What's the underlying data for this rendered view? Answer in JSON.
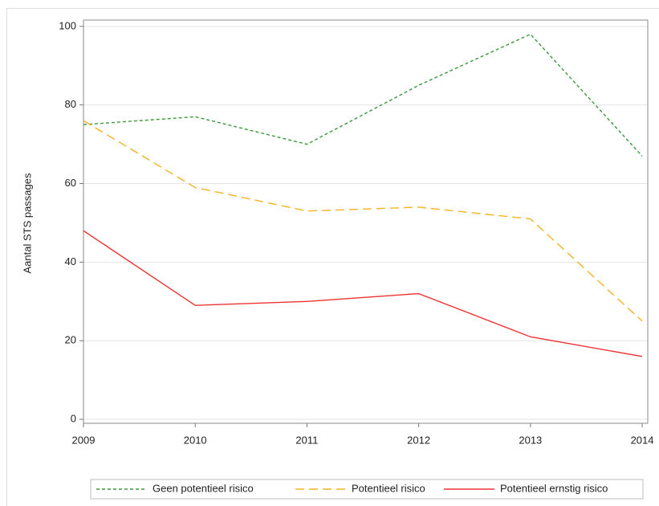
{
  "chart_data": {
    "type": "line",
    "y_label": "Aantal STS passages",
    "x": [
      2009,
      2010,
      2011,
      2012,
      2013,
      2014
    ],
    "series": [
      {
        "name": "Geen potentieel risico",
        "color": "#3a9a3a",
        "dash": "4 3",
        "values": [
          75,
          77,
          70,
          85,
          98,
          67
        ]
      },
      {
        "name": "Potentieel risico",
        "color": "#f5b324",
        "dash": "11 6",
        "values": [
          76,
          59,
          53,
          54,
          51,
          25
        ]
      },
      {
        "name": "Potentieel ernstig risico",
        "color": "#ee3333",
        "dash": "none",
        "values": [
          48,
          29,
          30,
          32,
          21,
          16
        ]
      }
    ],
    "xlim": [
      2009,
      2014.05
    ],
    "xticks": [
      2009,
      2010,
      2011,
      2012,
      2013,
      2014
    ],
    "ylim": [
      -1,
      101.6
    ],
    "yticks": [
      0,
      20,
      40,
      60,
      80,
      100
    ],
    "grid": true,
    "legend": "bottom"
  }
}
